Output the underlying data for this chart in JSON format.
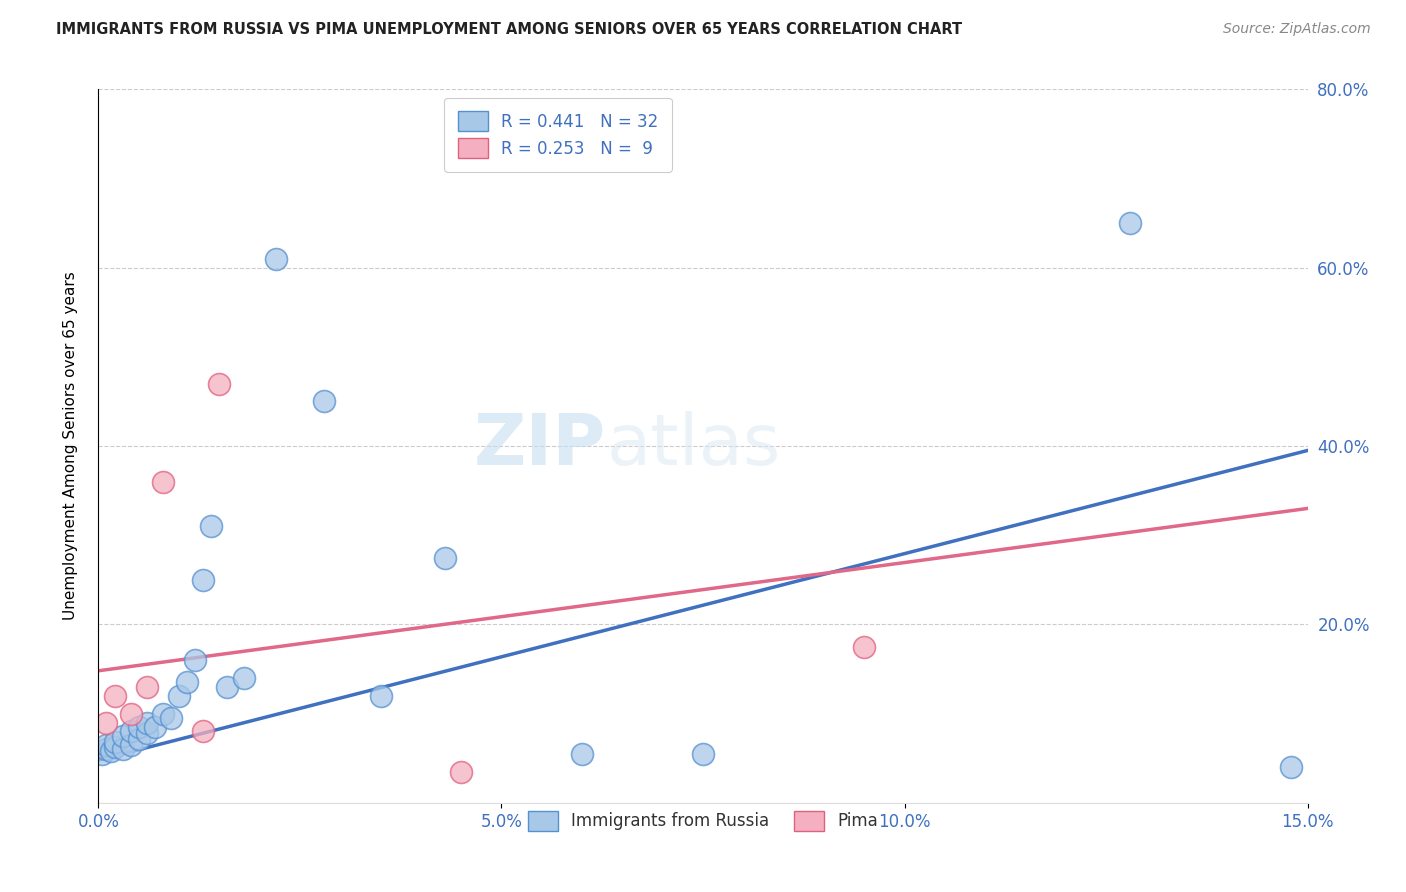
{
  "title": "IMMIGRANTS FROM RUSSIA VS PIMA UNEMPLOYMENT AMONG SENIORS OVER 65 YEARS CORRELATION CHART",
  "source": "Source: ZipAtlas.com",
  "ylabel": "Unemployment Among Seniors over 65 years",
  "xlim": [
    0,
    0.15
  ],
  "ylim": [
    0,
    0.8
  ],
  "xtick_vals": [
    0.0,
    0.05,
    0.1,
    0.15
  ],
  "xtick_labels": [
    "0.0%",
    "5.0%",
    "10.0%",
    "15.0%"
  ],
  "ytick_vals": [
    0.0,
    0.2,
    0.4,
    0.6,
    0.8
  ],
  "ytick_labels": [
    "",
    "20.0%",
    "40.0%",
    "60.0%",
    "80.0%"
  ],
  "blue_color": "#a8c8e8",
  "pink_color": "#f4b0c0",
  "blue_edge_color": "#5590d0",
  "pink_edge_color": "#e06080",
  "blue_line_color": "#4070c0",
  "pink_line_color": "#e06888",
  "watermark_zip": "ZIP",
  "watermark_atlas": "atlas",
  "blue_line_y0": 0.048,
  "blue_line_y1": 0.395,
  "pink_line_y0": 0.148,
  "pink_line_y1": 0.33,
  "blue_x": [
    0.0005,
    0.001,
    0.001,
    0.0015,
    0.002,
    0.002,
    0.003,
    0.003,
    0.004,
    0.004,
    0.005,
    0.005,
    0.006,
    0.006,
    0.007,
    0.008,
    0.009,
    0.01,
    0.011,
    0.012,
    0.013,
    0.014,
    0.016,
    0.018,
    0.022,
    0.028,
    0.035,
    0.043,
    0.06,
    0.075,
    0.128,
    0.148
  ],
  "blue_y": [
    0.055,
    0.06,
    0.065,
    0.058,
    0.062,
    0.068,
    0.06,
    0.075,
    0.065,
    0.08,
    0.072,
    0.085,
    0.078,
    0.09,
    0.085,
    0.1,
    0.095,
    0.12,
    0.135,
    0.16,
    0.25,
    0.31,
    0.13,
    0.14,
    0.61,
    0.45,
    0.12,
    0.275,
    0.055,
    0.055,
    0.65,
    0.04
  ],
  "pink_x": [
    0.001,
    0.002,
    0.004,
    0.006,
    0.008,
    0.013,
    0.015,
    0.045,
    0.095
  ],
  "pink_y": [
    0.09,
    0.12,
    0.1,
    0.13,
    0.36,
    0.08,
    0.47,
    0.035,
    0.175
  ]
}
